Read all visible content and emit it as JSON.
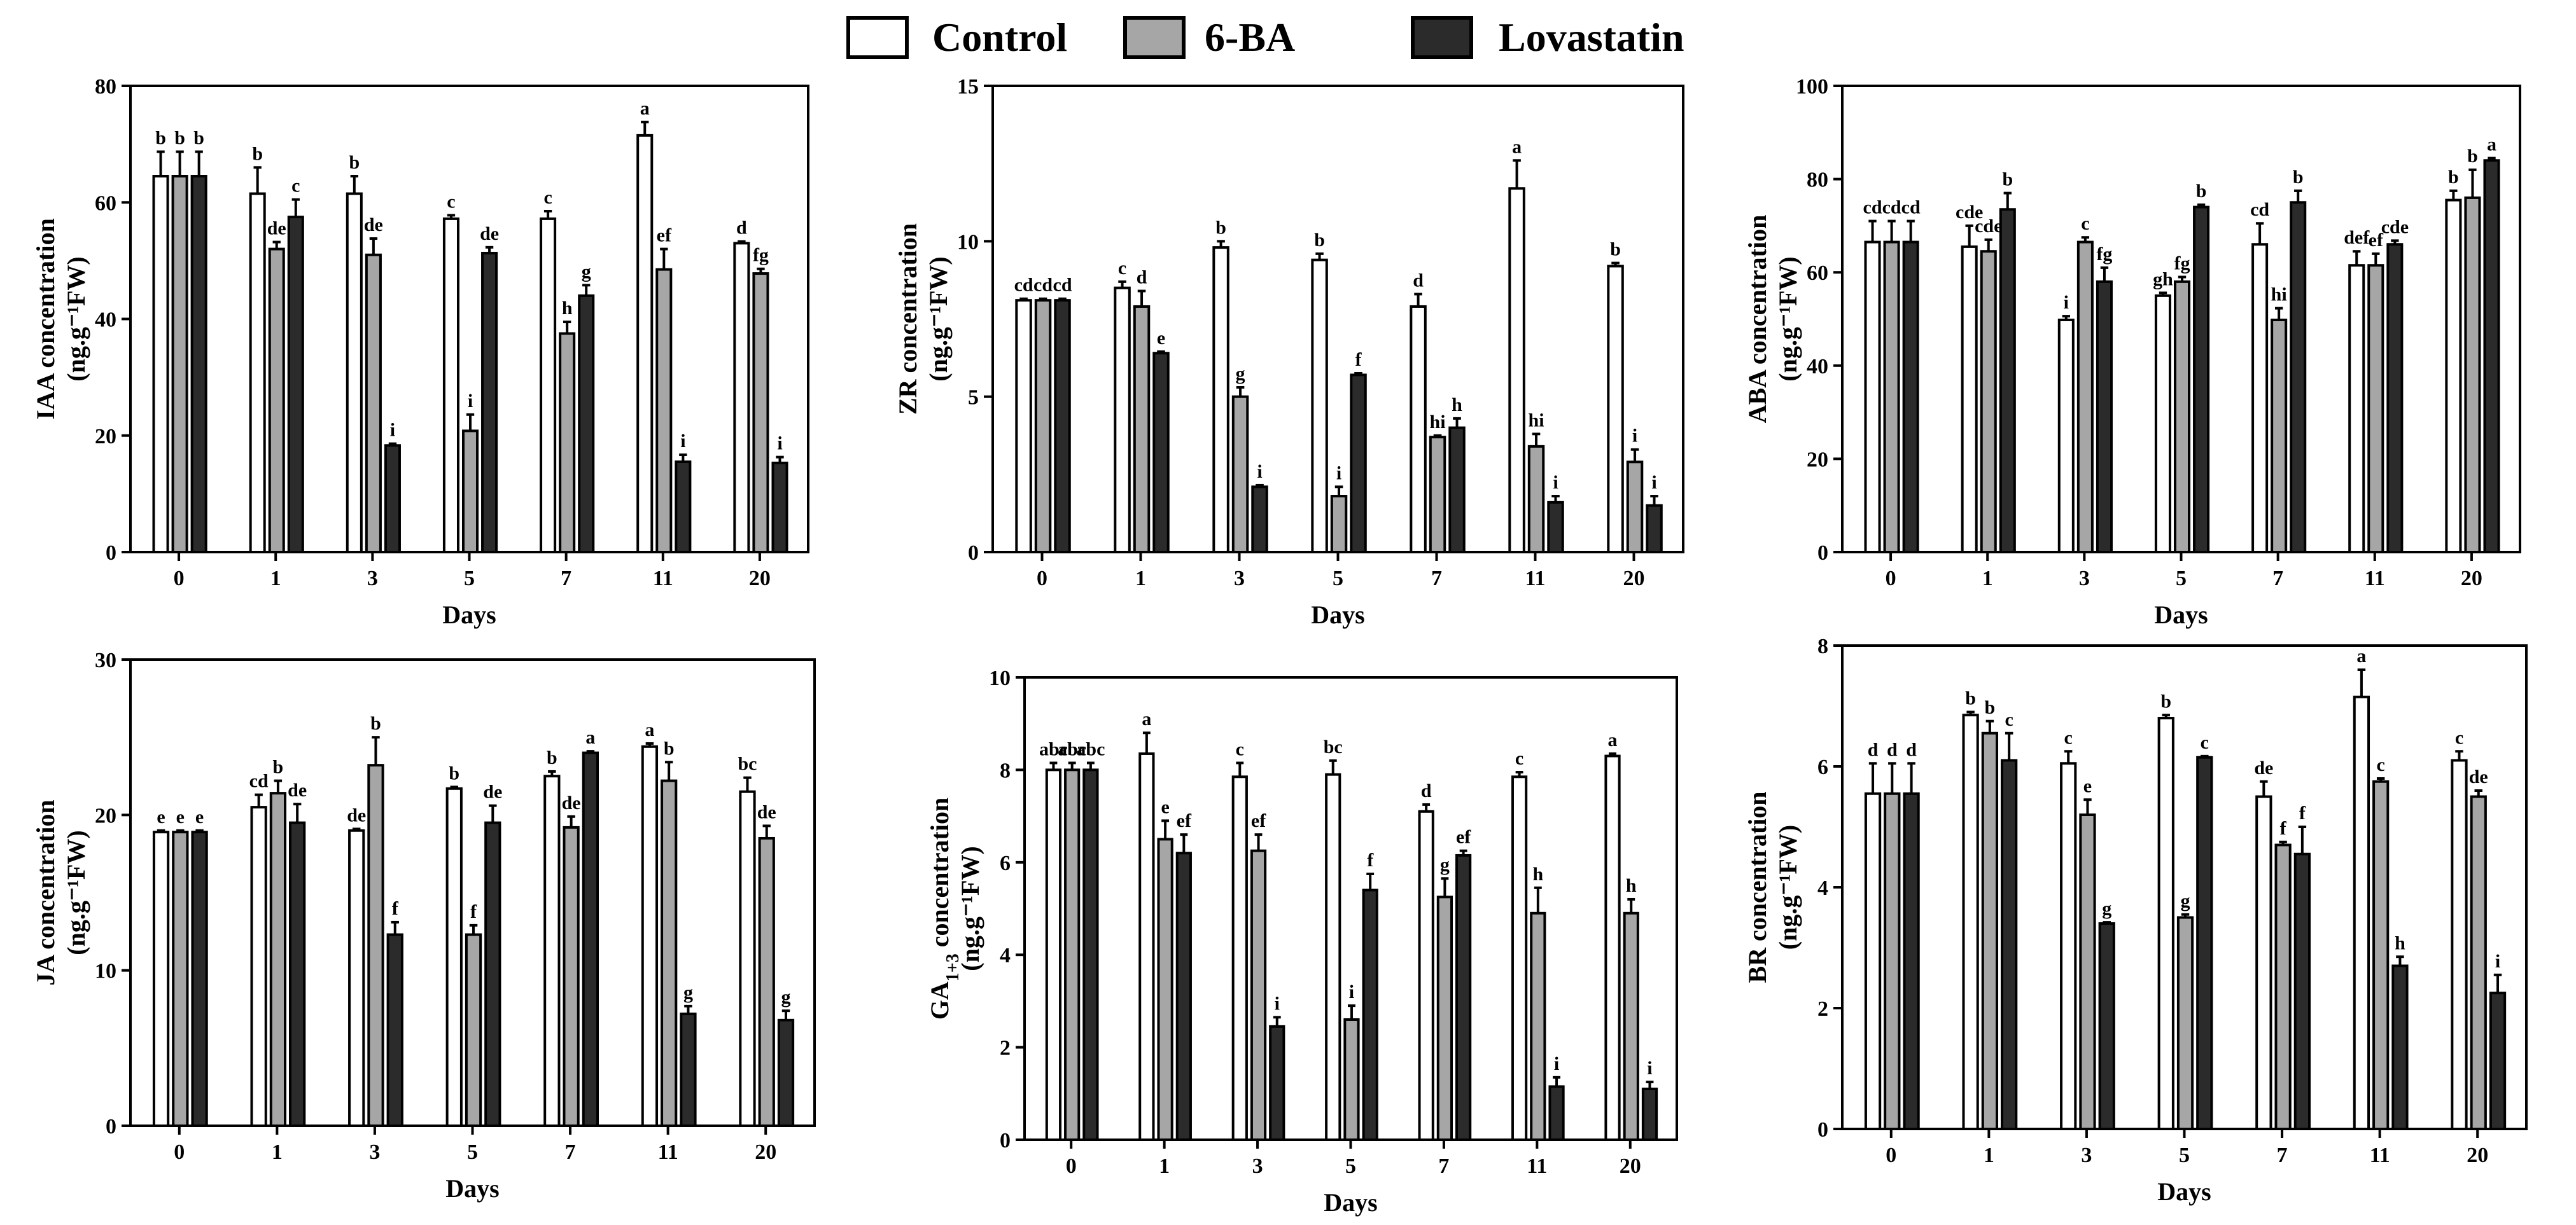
{
  "legend": [
    {
      "name": "Control",
      "color": "#ffffff"
    },
    {
      "name": "6-BA",
      "color": "#a6a6a6"
    },
    {
      "name": "Lovastatin",
      "color": "#2b2b2b"
    }
  ],
  "chart_data": [
    {
      "type": "bar",
      "xlabel": "Days",
      "ylabel": "IAA concentration",
      "ylabel2": "(ng.g⁻¹FW)",
      "ylim": [
        0,
        80
      ],
      "yticks": [
        0,
        20,
        40,
        60,
        80
      ],
      "categories": [
        "0",
        "1",
        "3",
        "5",
        "7",
        "11",
        "20"
      ],
      "series": [
        {
          "name": "Control",
          "values": [
            64.5,
            61.5,
            61.5,
            57.2,
            57.2,
            71.5,
            53.0
          ],
          "errors": [
            4.2,
            4.5,
            3.0,
            0.6,
            1.3,
            2.3,
            0.3
          ],
          "letters": [
            "b",
            "b",
            "b",
            "c",
            "c",
            "a",
            "d"
          ]
        },
        {
          "name": "6-BA",
          "values": [
            64.5,
            52.0,
            51.0,
            20.8,
            37.5,
            48.5,
            47.8
          ],
          "errors": [
            4.2,
            1.2,
            2.8,
            2.8,
            2.0,
            3.5,
            0.8
          ],
          "letters": [
            "b",
            "de",
            "de",
            "i",
            "h",
            "ef",
            "fg"
          ]
        },
        {
          "name": "Lovastatin",
          "values": [
            64.5,
            57.5,
            18.3,
            51.3,
            44.0,
            15.5,
            15.3
          ],
          "errors": [
            4.2,
            3.0,
            0.3,
            1.0,
            1.8,
            1.2,
            1.0
          ],
          "letters": [
            "b",
            "c",
            "i",
            "de",
            "g",
            "i",
            "i"
          ]
        }
      ]
    },
    {
      "type": "bar",
      "xlabel": "Days",
      "ylabel": "ZR concentration",
      "ylabel2": "(ng.g⁻¹FW)",
      "ylim": [
        0,
        15
      ],
      "yticks": [
        0,
        5,
        10,
        15
      ],
      "categories": [
        "0",
        "1",
        "3",
        "5",
        "7",
        "11",
        "20"
      ],
      "series": [
        {
          "name": "Control",
          "values": [
            8.1,
            8.5,
            9.8,
            9.4,
            7.9,
            11.7,
            9.2
          ],
          "errors": [
            0.05,
            0.2,
            0.2,
            0.2,
            0.4,
            0.9,
            0.1
          ],
          "letters": [
            "cd",
            "c",
            "b",
            "b",
            "d",
            "a",
            "b"
          ]
        },
        {
          "name": "6-BA",
          "values": [
            8.1,
            7.9,
            5.0,
            1.8,
            3.7,
            3.4,
            2.9
          ],
          "errors": [
            0.05,
            0.5,
            0.3,
            0.3,
            0.05,
            0.4,
            0.4
          ],
          "letters": [
            "cd",
            "d",
            "g",
            "i",
            "hi",
            "hi",
            "i"
          ]
        },
        {
          "name": "Lovastatin",
          "values": [
            8.1,
            6.4,
            2.1,
            5.7,
            4.0,
            1.6,
            1.5
          ],
          "errors": [
            0.05,
            0.05,
            0.05,
            0.05,
            0.3,
            0.2,
            0.3
          ],
          "letters": [
            "cd",
            "e",
            "i",
            "f",
            "h",
            "i",
            "i"
          ]
        }
      ]
    },
    {
      "type": "bar",
      "xlabel": "Days",
      "ylabel": "ABA concentration",
      "ylabel2": "(ng.g⁻¹FW)",
      "ylim": [
        0,
        100
      ],
      "yticks": [
        0,
        20,
        40,
        60,
        80,
        100
      ],
      "categories": [
        "0",
        "1",
        "3",
        "5",
        "7",
        "11",
        "20"
      ],
      "series": [
        {
          "name": "Control",
          "values": [
            66.5,
            65.5,
            49.8,
            55.0,
            66.0,
            61.5,
            75.5
          ],
          "errors": [
            4.5,
            4.5,
            0.8,
            0.6,
            4.5,
            3.0,
            2.0
          ],
          "letters": [
            "cd",
            "cde",
            "i",
            "gh",
            "cd",
            "def",
            "b"
          ]
        },
        {
          "name": "6-BA",
          "values": [
            66.5,
            64.5,
            66.5,
            58.0,
            49.8,
            61.5,
            76.0
          ],
          "errors": [
            4.5,
            2.5,
            1.0,
            1.0,
            2.5,
            2.5,
            6.0
          ],
          "letters": [
            "cd",
            "cde",
            "c",
            "fg",
            "hi",
            "ef",
            "b"
          ]
        },
        {
          "name": "Lovastatin",
          "values": [
            66.5,
            73.5,
            58.0,
            74.0,
            75.0,
            66.0,
            84.0
          ],
          "errors": [
            4.5,
            3.5,
            3.0,
            0.5,
            2.5,
            0.8,
            0.5
          ],
          "letters": [
            "cd",
            "b",
            "fg",
            "b",
            "b",
            "cde",
            "a"
          ]
        }
      ]
    },
    {
      "type": "bar",
      "xlabel": "Days",
      "ylabel": "JA concentration",
      "ylabel2": "(ng.g⁻¹FW)",
      "ylim": [
        0,
        30
      ],
      "yticks": [
        0,
        10,
        20,
        30
      ],
      "categories": [
        "0",
        "1",
        "3",
        "5",
        "7",
        "11",
        "20"
      ],
      "series": [
        {
          "name": "Control",
          "values": [
            18.9,
            20.5,
            19.0,
            21.7,
            22.5,
            24.4,
            21.5
          ],
          "errors": [
            0.1,
            0.8,
            0.1,
            0.1,
            0.3,
            0.2,
            0.9
          ],
          "letters": [
            "e",
            "cd",
            "de",
            "b",
            "b",
            "a",
            "bc"
          ]
        },
        {
          "name": "6-BA",
          "values": [
            18.9,
            21.4,
            23.2,
            12.3,
            19.2,
            22.2,
            18.5
          ],
          "errors": [
            0.1,
            0.8,
            1.8,
            0.6,
            0.7,
            1.2,
            0.8
          ],
          "letters": [
            "e",
            "b",
            "b",
            "f",
            "de",
            "b",
            "de"
          ]
        },
        {
          "name": "Lovastatin",
          "values": [
            18.9,
            19.5,
            12.3,
            19.5,
            24.0,
            7.2,
            6.8
          ],
          "errors": [
            0.1,
            1.2,
            0.8,
            1.1,
            0.1,
            0.5,
            0.6
          ],
          "letters": [
            "e",
            "de",
            "f",
            "de",
            "a",
            "g",
            "g"
          ]
        }
      ]
    },
    {
      "type": "bar",
      "xlabel": "Days",
      "ylabel": "GA",
      "ylabel_sub": "1+3",
      "ylabel_rest": " concentration",
      "ylabel2": "(ng.g⁻¹FW)",
      "ylim": [
        0,
        10
      ],
      "yticks": [
        0,
        2,
        4,
        6,
        8,
        10
      ],
      "categories": [
        "0",
        "1",
        "3",
        "5",
        "7",
        "11",
        "20"
      ],
      "series": [
        {
          "name": "Control",
          "values": [
            8.0,
            8.35,
            7.85,
            7.9,
            7.1,
            7.85,
            8.3
          ],
          "errors": [
            0.15,
            0.45,
            0.3,
            0.3,
            0.15,
            0.1,
            0.05
          ],
          "letters": [
            "abc",
            "a",
            "c",
            "bc",
            "d",
            "c",
            "a"
          ]
        },
        {
          "name": "6-BA",
          "values": [
            8.0,
            6.5,
            6.25,
            2.6,
            5.25,
            4.9,
            4.9
          ],
          "errors": [
            0.15,
            0.4,
            0.35,
            0.3,
            0.4,
            0.55,
            0.3
          ],
          "letters": [
            "abc",
            "e",
            "ef",
            "i",
            "g",
            "h",
            "h"
          ]
        },
        {
          "name": "Lovastatin",
          "values": [
            8.0,
            6.2,
            2.45,
            5.4,
            6.15,
            1.15,
            1.1
          ],
          "errors": [
            0.15,
            0.4,
            0.2,
            0.35,
            0.1,
            0.2,
            0.15
          ],
          "letters": [
            "abc",
            "ef",
            "i",
            "f",
            "ef",
            "i",
            "i"
          ]
        }
      ]
    },
    {
      "type": "bar",
      "xlabel": "Days",
      "ylabel": "BR concentration",
      "ylabel2": "(ng.g⁻¹FW)",
      "ylim": [
        0,
        8
      ],
      "yticks": [
        0,
        2,
        4,
        6,
        8
      ],
      "categories": [
        "0",
        "1",
        "3",
        "5",
        "7",
        "11",
        "20"
      ],
      "series": [
        {
          "name": "Control",
          "values": [
            5.55,
            6.85,
            6.05,
            6.8,
            5.5,
            7.15,
            6.1
          ],
          "errors": [
            0.5,
            0.05,
            0.2,
            0.05,
            0.25,
            0.45,
            0.15
          ],
          "letters": [
            "d",
            "b",
            "c",
            "b",
            "de",
            "a",
            "c"
          ]
        },
        {
          "name": "6-BA",
          "values": [
            5.55,
            6.55,
            5.2,
            3.5,
            4.7,
            5.75,
            5.5
          ],
          "errors": [
            0.5,
            0.2,
            0.25,
            0.05,
            0.05,
            0.05,
            0.1
          ],
          "letters": [
            "d",
            "b",
            "e",
            "g",
            "f",
            "c",
            "de"
          ]
        },
        {
          "name": "Lovastatin",
          "values": [
            5.55,
            6.1,
            3.4,
            6.15,
            4.55,
            2.7,
            2.25
          ],
          "errors": [
            0.5,
            0.45,
            0.02,
            0.02,
            0.45,
            0.15,
            0.3
          ],
          "letters": [
            "d",
            "c",
            "g",
            "c",
            "f",
            "h",
            "i"
          ]
        }
      ]
    }
  ]
}
